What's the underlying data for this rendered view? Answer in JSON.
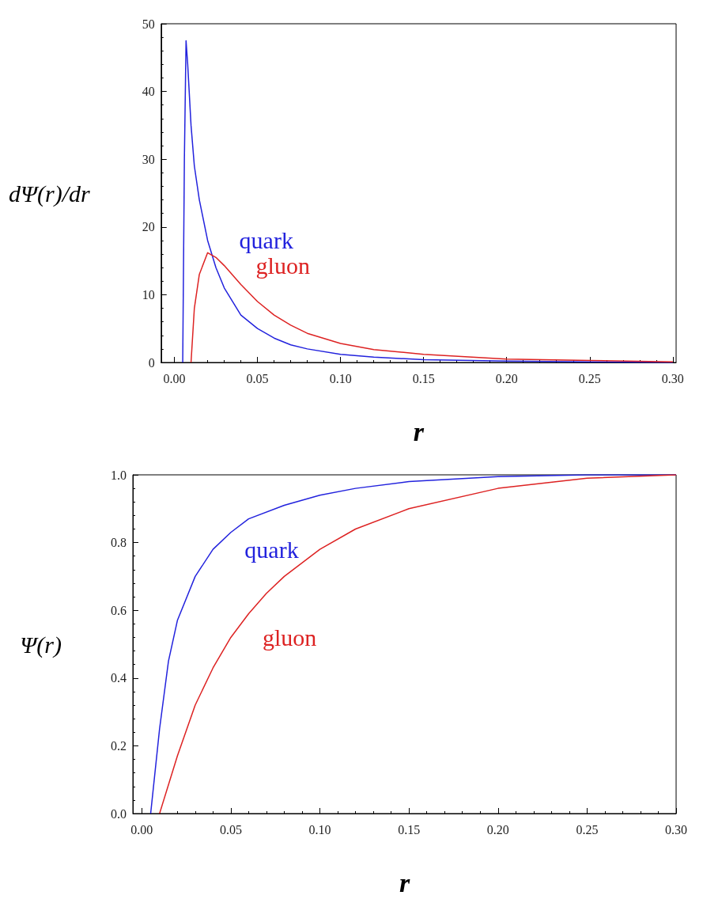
{
  "chart_data": [
    {
      "type": "line",
      "xlabel": "r",
      "ylabel": "dΨ(r)/dr",
      "xlim": [
        -0.008,
        0.302
      ],
      "ylim": [
        0,
        50
      ],
      "xticks": [
        {
          "value": 0,
          "label": "0.00"
        },
        {
          "value": 0.05,
          "label": "0.05"
        },
        {
          "value": 0.1,
          "label": "0.10"
        },
        {
          "value": 0.15,
          "label": "0.15"
        },
        {
          "value": 0.2,
          "label": "0.20"
        },
        {
          "value": 0.25,
          "label": "0.25"
        },
        {
          "value": 0.3,
          "label": "0.30"
        }
      ],
      "yticks": [
        0,
        10,
        20,
        30,
        40,
        50
      ],
      "grid": false,
      "legend": false,
      "marker": "none",
      "line_style": "solid",
      "series": [
        {
          "name": "quark",
          "color": "#2222dd",
          "x": [
            0.005,
            0.006,
            0.007,
            0.008,
            0.01,
            0.012,
            0.015,
            0.02,
            0.025,
            0.03,
            0.04,
            0.05,
            0.06,
            0.07,
            0.08,
            0.1,
            0.12,
            0.15,
            0.2,
            0.25,
            0.3
          ],
          "values": [
            0,
            30,
            47.5,
            44,
            35,
            29,
            24,
            18,
            14,
            11,
            7,
            5,
            3.6,
            2.6,
            2,
            1.2,
            0.8,
            0.4,
            0.2,
            0.1,
            0
          ]
        },
        {
          "name": "gluon",
          "color": "#dd2222",
          "x": [
            0.01,
            0.012,
            0.015,
            0.02,
            0.025,
            0.03,
            0.04,
            0.05,
            0.06,
            0.07,
            0.08,
            0.1,
            0.12,
            0.15,
            0.2,
            0.25,
            0.3
          ],
          "values": [
            0,
            8,
            13,
            16.2,
            15.5,
            14.3,
            11.5,
            9,
            7,
            5.5,
            4.3,
            2.8,
            1.9,
            1.2,
            0.5,
            0.3,
            0.1
          ]
        }
      ]
    },
    {
      "type": "line",
      "xlabel": "r",
      "ylabel": "Ψ(r)",
      "xlim": [
        -0.005,
        0.3
      ],
      "ylim": [
        0,
        1
      ],
      "xticks": [
        {
          "value": 0,
          "label": "0.00"
        },
        {
          "value": 0.05,
          "label": "0.05"
        },
        {
          "value": 0.1,
          "label": "0.10"
        },
        {
          "value": 0.15,
          "label": "0.15"
        },
        {
          "value": 0.2,
          "label": "0.20"
        },
        {
          "value": 0.25,
          "label": "0.25"
        },
        {
          "value": 0.3,
          "label": "0.30"
        }
      ],
      "yticks": [
        {
          "value": 0,
          "label": "0.0"
        },
        {
          "value": 0.2,
          "label": "0.2"
        },
        {
          "value": 0.4,
          "label": "0.4"
        },
        {
          "value": 0.6,
          "label": "0.6"
        },
        {
          "value": 0.8,
          "label": "0.8"
        },
        {
          "value": 1,
          "label": "1.0"
        }
      ],
      "grid": false,
      "legend": false,
      "marker": "none",
      "line_style": "solid",
      "series": [
        {
          "name": "quark",
          "color": "#2222dd",
          "x": [
            0.005,
            0.01,
            0.015,
            0.02,
            0.03,
            0.04,
            0.05,
            0.06,
            0.08,
            0.1,
            0.12,
            0.15,
            0.2,
            0.25,
            0.3
          ],
          "values": [
            0,
            0.25,
            0.45,
            0.57,
            0.7,
            0.78,
            0.83,
            0.87,
            0.91,
            0.94,
            0.96,
            0.98,
            0.995,
            1,
            1
          ]
        },
        {
          "name": "gluon",
          "color": "#dd2222",
          "x": [
            0.01,
            0.02,
            0.03,
            0.04,
            0.05,
            0.06,
            0.07,
            0.08,
            0.1,
            0.12,
            0.15,
            0.2,
            0.25,
            0.3
          ],
          "values": [
            0,
            0.17,
            0.32,
            0.43,
            0.52,
            0.59,
            0.65,
            0.7,
            0.78,
            0.84,
            0.9,
            0.96,
            0.99,
            1
          ]
        }
      ]
    }
  ]
}
